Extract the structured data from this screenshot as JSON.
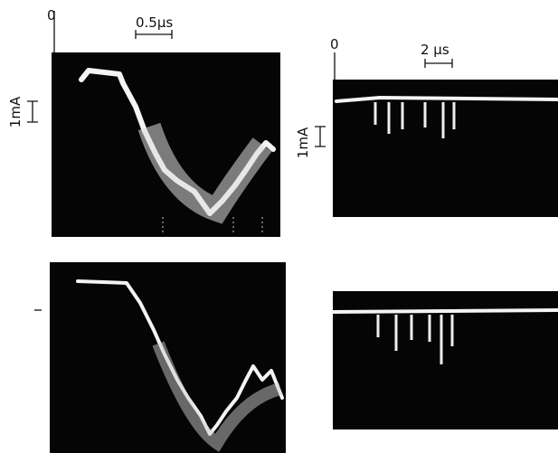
{
  "panels": [
    {
      "time_origin": "0",
      "time_scale": "0.5μs",
      "current_scale": "1mA"
    },
    {
      "time_origin": "0",
      "time_scale": "2 μs",
      "current_scale": "1mA"
    }
  ]
}
